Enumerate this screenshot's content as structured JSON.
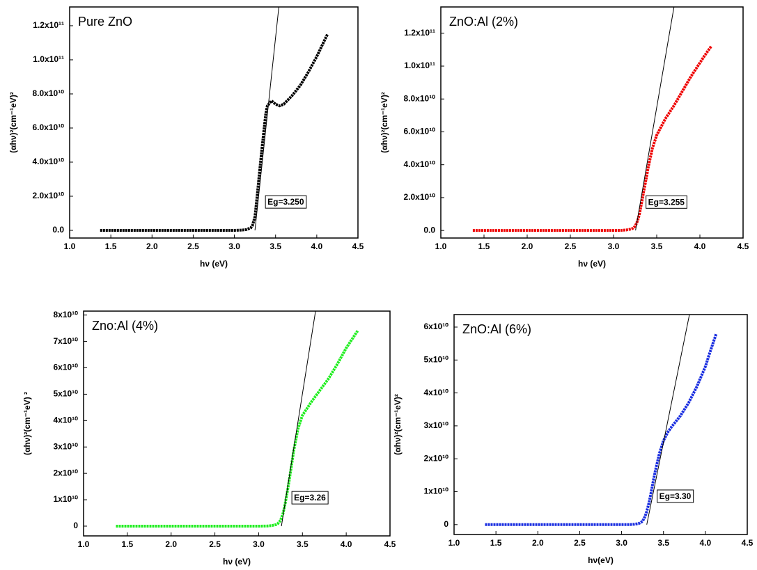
{
  "chart_data": [
    {
      "type": "line",
      "title": "Pure ZnO",
      "xlabel": "hν (eV)",
      "ylabel": "(αhν)²(cm⁻¹eV)²",
      "annotation": "Eg=3.250",
      "xlim": [
        1.0,
        4.5
      ],
      "xticks": [
        {
          "value": 1.0,
          "label": "1.0"
        },
        1.5,
        {
          "value": 2.0,
          "label": "2.0"
        },
        2.5,
        {
          "value": 3.0,
          "label": "3.0"
        },
        3.5,
        {
          "value": 4.0,
          "label": "4.0"
        },
        4.5
      ],
      "ylim": [
        -4500000000.0,
        131000000000.0
      ],
      "yticks": [
        {
          "value": 0,
          "label": "0.0"
        },
        {
          "value": 20000000000.0,
          "label": "2.0x10¹⁰"
        },
        {
          "value": 40000000000.0,
          "label": "4.0x10¹⁰"
        },
        {
          "value": 60000000000.0,
          "label": "6.0x10¹⁰"
        },
        {
          "value": 80000000000.0,
          "label": "8.0x10¹⁰"
        },
        {
          "value": 100000000000.0,
          "label": "1.0x10¹¹"
        },
        {
          "value": 120000000000.0,
          "label": "1.2x10¹¹"
        }
      ],
      "series": [
        {
          "color": "#000000",
          "x": [
            1.37,
            1.6,
            1.8,
            2.0,
            2.2,
            2.4,
            2.6,
            2.8,
            3.0,
            3.1,
            3.15,
            3.2,
            3.22,
            3.25,
            3.28,
            3.3,
            3.33,
            3.35,
            3.38,
            3.4,
            3.45,
            3.5,
            3.55,
            3.6,
            3.7,
            3.8,
            3.9,
            4.0,
            4.05,
            4.13
          ],
          "values": [
            0,
            0,
            0,
            0,
            0,
            0,
            0,
            0,
            0,
            200000000.0,
            500000000.0,
            1500000000.0,
            3000000000.0,
            8000000000.0,
            22000000000.0,
            32000000000.0,
            46000000000.0,
            55000000000.0,
            68000000000.0,
            73000000000.0,
            76000000000.0,
            74000000000.0,
            73000000000.0,
            74000000000.0,
            79000000000.0,
            85000000000.0,
            93000000000.0,
            102000000000.0,
            107000000000.0,
            115000000000.0
          ]
        }
      ],
      "fit": {
        "x": [
          3.25,
          3.54
        ],
        "values": [
          0,
          131000000000.0
        ]
      }
    },
    {
      "type": "line",
      "title": "ZnO:Al (2%)",
      "xlabel": "hν (eV)",
      "ylabel": "(αhν)²(cm⁻¹eV)²",
      "annotation": "Eg=3.255",
      "xlim": [
        1.0,
        4.5
      ],
      "xticks": [
        {
          "value": 1.0,
          "label": "1.0"
        },
        1.5,
        {
          "value": 2.0,
          "label": "2.0"
        },
        2.5,
        {
          "value": 3.0,
          "label": "3.0"
        },
        3.5,
        {
          "value": 4.0,
          "label": "4.0"
        },
        4.5
      ],
      "ylim": [
        -4600000000.0,
        136000000000.0
      ],
      "yticks": [
        {
          "value": 0,
          "label": "0.0"
        },
        {
          "value": 20000000000.0,
          "label": "2.0x10¹⁰"
        },
        {
          "value": 40000000000.0,
          "label": "4.0x10¹⁰"
        },
        {
          "value": 60000000000.0,
          "label": "6.0x10¹⁰"
        },
        {
          "value": 80000000000.0,
          "label": "8.0x10¹⁰"
        },
        {
          "value": 100000000000.0,
          "label": "1.0x10¹¹"
        },
        {
          "value": 120000000000.0,
          "label": "1.2x10¹¹"
        }
      ],
      "series": [
        {
          "color": "#ee0000",
          "x": [
            1.37,
            1.6,
            1.8,
            2.0,
            2.2,
            2.4,
            2.6,
            2.8,
            3.0,
            3.1,
            3.15,
            3.2,
            3.22,
            3.25,
            3.28,
            3.3,
            3.33,
            3.35,
            3.38,
            3.4,
            3.45,
            3.5,
            3.55,
            3.6,
            3.7,
            3.8,
            3.9,
            4.0,
            4.05,
            4.13
          ],
          "values": [
            0,
            0,
            0,
            0,
            0,
            0,
            0,
            0,
            0,
            100000000.0,
            300000000.0,
            800000000.0,
            1200000000.0,
            2500000000.0,
            6000000000.0,
            10000000000.0,
            18000000000.0,
            24000000000.0,
            32000000000.0,
            38000000000.0,
            50000000000.0,
            58000000000.0,
            63000000000.0,
            68000000000.0,
            76000000000.0,
            85000000000.0,
            94000000000.0,
            102000000000.0,
            106000000000.0,
            112000000000.0
          ]
        }
      ],
      "fit": {
        "x": [
          3.255,
          3.7
        ],
        "values": [
          0,
          136000000000.0
        ]
      }
    },
    {
      "type": "line",
      "title": "Zno:Al (4%)",
      "xlabel": "hν (eV)",
      "ylabel": "(αhν)²(cm⁻¹eV) ²",
      "annotation": "Eg=3.26",
      "xlim": [
        1.0,
        4.5
      ],
      "xticks": [
        {
          "value": 1.0,
          "label": "1.0"
        },
        1.5,
        {
          "value": 2.0,
          "label": "2.0"
        },
        2.5,
        {
          "value": 3.0,
          "label": "3.0"
        },
        3.5,
        {
          "value": 4.0,
          "label": "4.0"
        },
        4.5
      ],
      "ylim": [
        -3700000000.0,
        81500000000.0
      ],
      "yticks": [
        0,
        {
          "value": 10000000000.0,
          "label": "1x10¹⁰"
        },
        {
          "value": 20000000000.0,
          "label": "2x10¹⁰"
        },
        {
          "value": 30000000000.0,
          "label": "3x10¹⁰"
        },
        {
          "value": 40000000000.0,
          "label": "4x10¹⁰"
        },
        {
          "value": 50000000000.0,
          "label": "5x10¹⁰"
        },
        {
          "value": 60000000000.0,
          "label": "6x10¹⁰"
        },
        {
          "value": 70000000000.0,
          "label": "7x10¹⁰"
        },
        {
          "value": 80000000000.0,
          "label": "8x10¹⁰"
        }
      ],
      "series": [
        {
          "color": "#22ee22",
          "x": [
            1.37,
            1.6,
            1.8,
            2.0,
            2.2,
            2.4,
            2.6,
            2.8,
            3.0,
            3.1,
            3.15,
            3.2,
            3.22,
            3.25,
            3.28,
            3.3,
            3.33,
            3.35,
            3.38,
            3.4,
            3.45,
            3.5,
            3.55,
            3.6,
            3.7,
            3.8,
            3.9,
            4.0,
            4.05,
            4.13
          ],
          "values": [
            0,
            0,
            0,
            0,
            0,
            0,
            0,
            0,
            0,
            50000000.0,
            200000000.0,
            600000000.0,
            1000000000.0,
            2200000000.0,
            5000000000.0,
            8000000000.0,
            13500000000.0,
            17500000000.0,
            24000000000.0,
            28500000000.0,
            37000000000.0,
            42000000000.0,
            44500000000.0,
            47000000000.0,
            51500000000.0,
            56000000000.0,
            61500000000.0,
            67500000000.0,
            70000000000.0,
            74000000000.0
          ]
        }
      ],
      "fit": {
        "x": [
          3.26,
          3.65
        ],
        "values": [
          0,
          81500000000.0
        ]
      }
    },
    {
      "type": "line",
      "title": "ZnO:Al (6%)",
      "xlabel": "hν(eV)",
      "ylabel": "(αhν)²(cm⁻¹eV)²",
      "annotation": "Eg=3.30",
      "xlim": [
        1.0,
        4.5
      ],
      "xticks": [
        {
          "value": 1.0,
          "label": "1.0"
        },
        1.5,
        {
          "value": 2.0,
          "label": "2.0"
        },
        2.5,
        {
          "value": 3.0,
          "label": "3.0"
        },
        3.5,
        {
          "value": 4.0,
          "label": "4.0"
        },
        4.5
      ],
      "ylim": [
        -3000000000.0,
        63800000000.0
      ],
      "yticks": [
        0,
        {
          "value": 10000000000.0,
          "label": "1x10¹⁰"
        },
        {
          "value": 20000000000.0,
          "label": "2x10¹⁰"
        },
        {
          "value": 30000000000.0,
          "label": "3x10¹⁰"
        },
        {
          "value": 40000000000.0,
          "label": "4x10¹⁰"
        },
        {
          "value": 50000000000.0,
          "label": "5x10¹⁰"
        },
        {
          "value": 60000000000.0,
          "label": "6x10¹⁰"
        }
      ],
      "series": [
        {
          "color": "#1a2ee0",
          "x": [
            1.37,
            1.6,
            1.8,
            2.0,
            2.2,
            2.4,
            2.6,
            2.8,
            3.0,
            3.1,
            3.15,
            3.2,
            3.22,
            3.25,
            3.28,
            3.3,
            3.33,
            3.35,
            3.38,
            3.4,
            3.45,
            3.5,
            3.55,
            3.6,
            3.7,
            3.8,
            3.9,
            4.0,
            4.05,
            4.13
          ],
          "values": [
            0,
            0,
            0,
            0,
            0,
            0,
            0,
            0,
            0,
            30000000.0,
            100000000.0,
            300000000.0,
            500000000.0,
            1000000000.0,
            2500000000.0,
            4000000000.0,
            7000000000.0,
            9500000000.0,
            13500000000.0,
            16000000000.0,
            21500000000.0,
            25500000000.0,
            28000000000.0,
            29800000000.0,
            33000000000.0,
            37000000000.0,
            42000000000.0,
            48000000000.0,
            52000000000.0,
            58000000000.0
          ]
        }
      ],
      "fit": {
        "x": [
          3.3,
          3.81
        ],
        "values": [
          0,
          63800000000.0
        ]
      }
    }
  ]
}
